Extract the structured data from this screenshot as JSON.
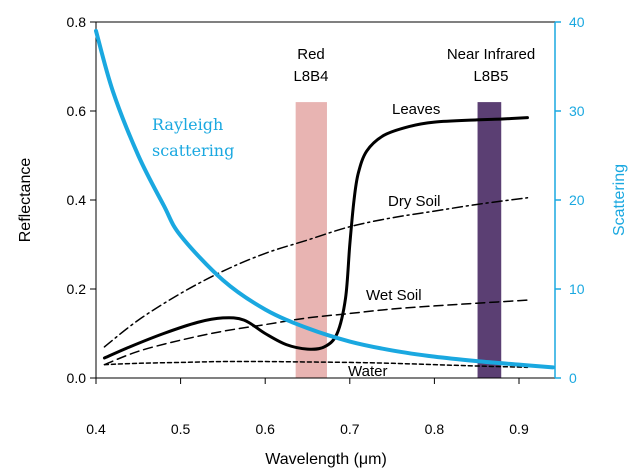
{
  "chart_data": {
    "type": "line",
    "xlabel": "Wavelength (μm)",
    "ylabel": "Reflectance",
    "y2label": "Scattering",
    "xlim": [
      0.4,
      0.94
    ],
    "ylim": [
      0.0,
      0.8
    ],
    "y2lim": [
      0,
      40
    ],
    "x_ticks": [
      0.4,
      0.5,
      0.6,
      0.7,
      0.8,
      0.9
    ],
    "x_tick_labels": [
      "0.4",
      "0.5",
      "0.6",
      "0.7",
      "0.8",
      "0.9"
    ],
    "y_ticks": [
      0.0,
      0.2,
      0.4,
      0.6,
      0.8
    ],
    "y_tick_labels": [
      "0.0",
      "0.2",
      "0.4",
      "0.6",
      "0.8"
    ],
    "y2_ticks": [
      0,
      10,
      20,
      30,
      40
    ],
    "y2_tick_labels": [
      "0",
      "10",
      "20",
      "30",
      "40"
    ],
    "bands": [
      {
        "label_line1": "Red",
        "label_line2": "L8B4",
        "x_start": 0.636,
        "x_end": 0.673,
        "color": "#e8b4b2"
      },
      {
        "label_line1": "Near Infrared",
        "label_line2": "L8B5",
        "x_start": 0.851,
        "x_end": 0.879,
        "color": "#5b3f73"
      }
    ],
    "series": [
      {
        "name": "Leaves",
        "axis": "left",
        "style": "solid-thick",
        "color": "#000000",
        "x": [
          0.41,
          0.44,
          0.48,
          0.52,
          0.55,
          0.575,
          0.6,
          0.625,
          0.65,
          0.67,
          0.685,
          0.695,
          0.7,
          0.705,
          0.71,
          0.72,
          0.74,
          0.77,
          0.8,
          0.85,
          0.88,
          0.91
        ],
        "y": [
          0.045,
          0.07,
          0.1,
          0.125,
          0.135,
          0.13,
          0.1,
          0.075,
          0.065,
          0.07,
          0.1,
          0.18,
          0.3,
          0.4,
          0.46,
          0.51,
          0.545,
          0.565,
          0.575,
          0.58,
          0.582,
          0.585
        ]
      },
      {
        "name": "Dry Soil",
        "axis": "left",
        "style": "dash-dot",
        "color": "#000000",
        "x": [
          0.41,
          0.45,
          0.5,
          0.55,
          0.6,
          0.65,
          0.7,
          0.75,
          0.8,
          0.85,
          0.91
        ],
        "y": [
          0.07,
          0.13,
          0.19,
          0.24,
          0.28,
          0.31,
          0.34,
          0.36,
          0.375,
          0.39,
          0.405
        ]
      },
      {
        "name": "Wet Soil",
        "axis": "left",
        "style": "dashed",
        "color": "#000000",
        "x": [
          0.41,
          0.45,
          0.5,
          0.55,
          0.6,
          0.65,
          0.7,
          0.75,
          0.8,
          0.85,
          0.91
        ],
        "y": [
          0.03,
          0.06,
          0.085,
          0.105,
          0.12,
          0.135,
          0.145,
          0.155,
          0.162,
          0.168,
          0.175
        ]
      },
      {
        "name": "Water",
        "axis": "left",
        "style": "dotted",
        "color": "#000000",
        "x": [
          0.41,
          0.45,
          0.5,
          0.55,
          0.6,
          0.65,
          0.7,
          0.75,
          0.8,
          0.85,
          0.91
        ],
        "y": [
          0.03,
          0.033,
          0.035,
          0.037,
          0.037,
          0.036,
          0.035,
          0.033,
          0.03,
          0.027,
          0.024
        ]
      },
      {
        "name": "Rayleigh scattering",
        "axis": "right",
        "style": "solid-thick",
        "color": "#1aa8e0",
        "x": [
          0.4,
          0.42,
          0.45,
          0.48,
          0.5,
          0.55,
          0.6,
          0.65,
          0.7,
          0.75,
          0.8,
          0.85,
          0.9,
          0.94
        ],
        "y": [
          39.0,
          32.2,
          25.0,
          19.4,
          16.0,
          11.0,
          7.7,
          5.6,
          4.1,
          3.1,
          2.4,
          1.9,
          1.5,
          1.2
        ]
      }
    ],
    "annotations": [
      {
        "text_line1": "Rayleigh",
        "text_line2": "scattering",
        "color": "#1aa8e0"
      },
      {
        "text": "Leaves"
      },
      {
        "text": "Dry Soil"
      },
      {
        "text": "Wet Soil"
      },
      {
        "text": "Water"
      }
    ]
  }
}
